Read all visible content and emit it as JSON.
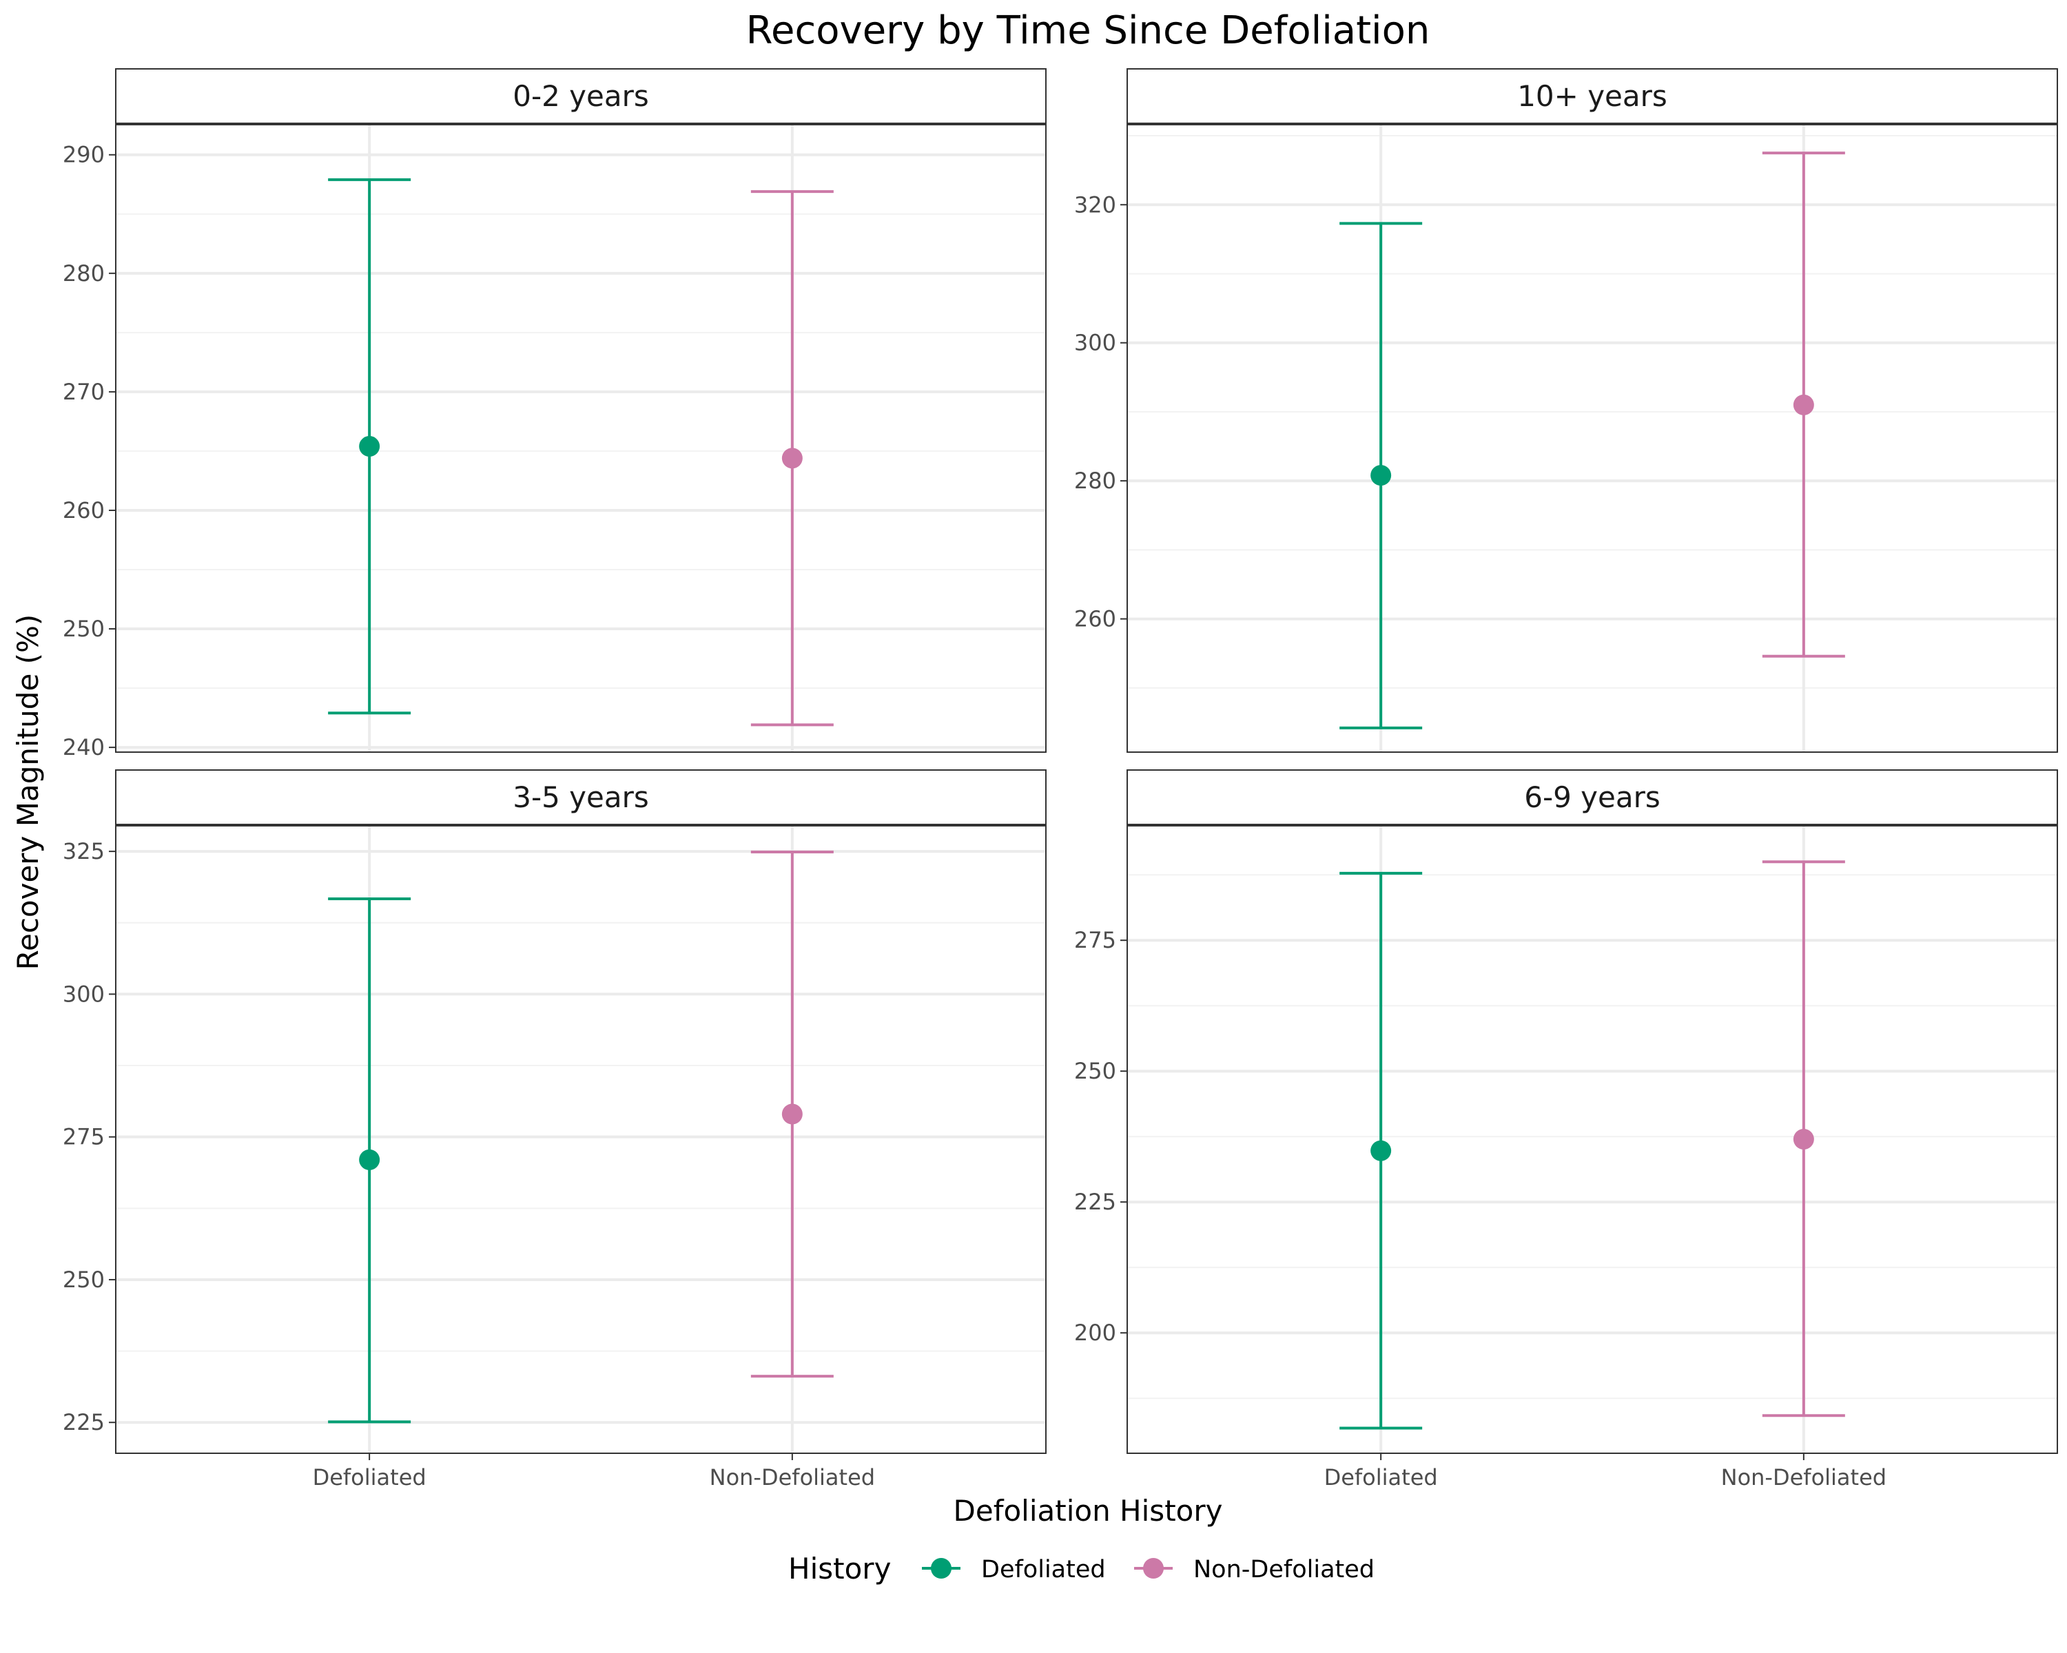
{
  "chart_data": {
    "type": "scatter",
    "title": "Recovery by Time Since Defoliation",
    "xlabel": "Defoliation History",
    "ylabel": "Recovery Magnitude (%)",
    "categories": [
      "Defoliated",
      "Non-Defoliated"
    ],
    "legend": {
      "title": "History",
      "position": "bottom",
      "entries": [
        "Defoliated",
        "Non-Defoliated"
      ]
    },
    "colors": {
      "Defoliated": "#009E73",
      "Non-Defoliated": "#CC79A7"
    },
    "grid": true,
    "panels": [
      {
        "label": "0-2 years",
        "ylim": [
          239.6,
          292.6
        ],
        "yticks": [
          240,
          250,
          260,
          270,
          280,
          290
        ],
        "points": [
          {
            "category": "Defoliated",
            "mean": 265.4,
            "lower": 242.9,
            "upper": 287.9
          },
          {
            "category": "Non-Defoliated",
            "mean": 264.4,
            "lower": 241.9,
            "upper": 286.9
          }
        ]
      },
      {
        "label": "10+ years",
        "ylim": [
          240.7,
          331.7
        ],
        "yticks": [
          260,
          280,
          300,
          320
        ],
        "points": [
          {
            "category": "Defoliated",
            "mean": 280.8,
            "lower": 244.2,
            "upper": 317.3
          },
          {
            "category": "Non-Defoliated",
            "mean": 291.0,
            "lower": 254.6,
            "upper": 327.5
          }
        ]
      },
      {
        "label": "3-5 years",
        "ylim": [
          219.6,
          329.6
        ],
        "yticks": [
          225,
          250,
          275,
          300,
          325
        ],
        "points": [
          {
            "category": "Defoliated",
            "mean": 271.0,
            "lower": 225.1,
            "upper": 316.7
          },
          {
            "category": "Non-Defoliated",
            "mean": 279.0,
            "lower": 233.1,
            "upper": 324.9
          }
        ]
      },
      {
        "label": "6-9 years",
        "ylim": [
          177.0,
          297.0
        ],
        "yticks": [
          200,
          225,
          250,
          275
        ],
        "points": [
          {
            "category": "Defoliated",
            "mean": 234.8,
            "lower": 181.8,
            "upper": 287.8
          },
          {
            "category": "Non-Defoliated",
            "mean": 237.0,
            "lower": 184.2,
            "upper": 290.0
          }
        ]
      }
    ]
  }
}
